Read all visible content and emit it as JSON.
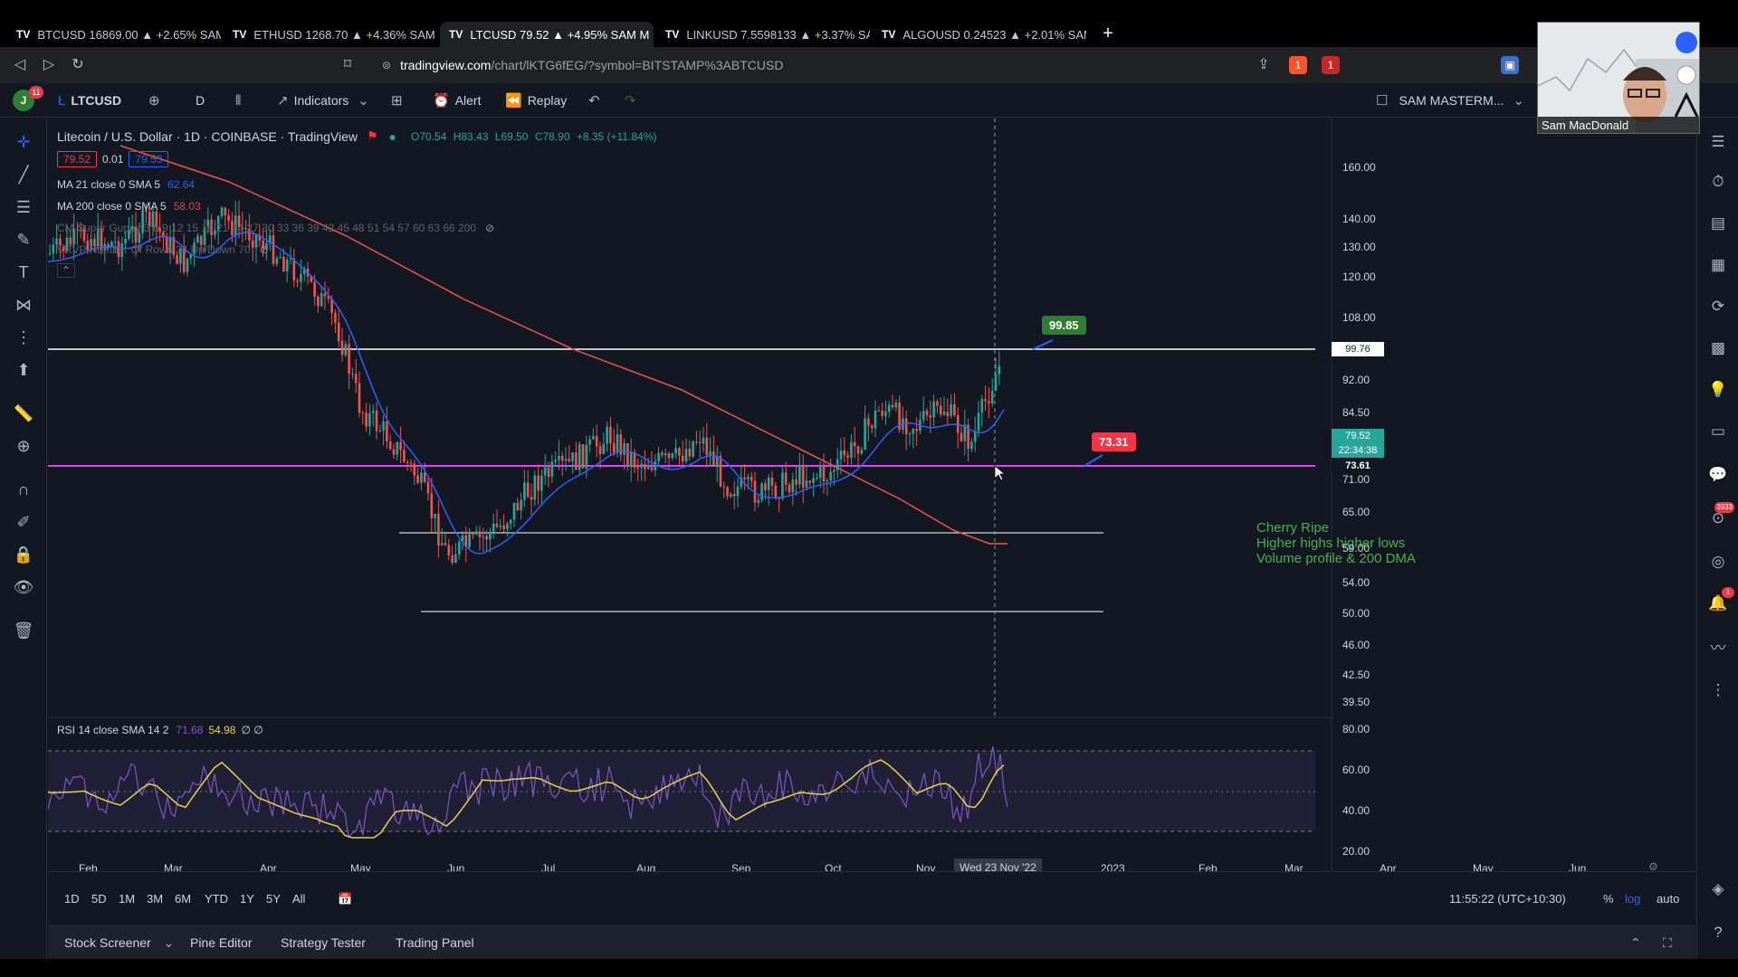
{
  "browser": {
    "tabs": [
      {
        "label": "BTCUSD 16869.00 ▲ +2.65% SAM MA",
        "active": false
      },
      {
        "label": "ETHUSD 1268.70 ▲ +4.36% SAM MAS",
        "active": false
      },
      {
        "label": "LTCUSD 79.52 ▲ +4.95% SAM M",
        "active": true
      },
      {
        "label": "LINKUSD 7.5598133 ▲ +3.37% SAM M",
        "active": false
      },
      {
        "label": "ALGOUSD 0.24523 ▲ +2.01% SAM M",
        "active": false
      }
    ],
    "tab_logo": "TV",
    "tab_close": "✕",
    "new_tab": "+",
    "url_domain": "tradingview.com",
    "url_path": "/chart/lKTG6fEG/?symbol=BITSTAMP%3ABTCUSD",
    "extensions": {
      "brave_badge": "1",
      "alert_badge": "1"
    }
  },
  "toolbar": {
    "avatar_letter": "J",
    "avatar_badge": "11",
    "symbol": "LTCUSD",
    "interval": "D",
    "indicators_label": "Indicators",
    "alert_label": "Alert",
    "replay_label": "Replay",
    "layout_name": "SAM MASTERM..."
  },
  "chart": {
    "title": "Litecoin / U.S. Dollar · 1D · COINBASE · TradingView",
    "ohlc": {
      "o": "O70.54",
      "h": "H83.43",
      "l": "L69.50",
      "c": "C78.90",
      "chg": "+8.35 (+11.84%)"
    },
    "bid": "79.52",
    "spread": "0.01",
    "ask": "79.53",
    "ma21": {
      "label": "MA 21 close 0 SMA 5",
      "value": "62.64",
      "color": "#2962ff"
    },
    "ma200": {
      "label": "MA 200 close 0 SMA 5",
      "value": "58.03",
      "color": "#f23645"
    },
    "cm_label": "CM Super Guppy 3 6 9 12 15 18 21 24 27 30 33 36 39 42 45 48 51 54 57 60 63 66 200",
    "vrvp_label": "VRVP Number Of Rows 24 Up/Down 70",
    "rsi_label": "RSI 14 close SMA 14 2",
    "rsi_value": "71.68",
    "rsi_ma_value": "54.98",
    "rsi_extra": "∅ ∅",
    "annotations": {
      "upper": "99.85",
      "lower": "73.31"
    },
    "note": [
      "Cherry Ripe",
      "Higher highs higher lows",
      "Volume profile & 200 DMA"
    ],
    "price_axis": [
      "160.00",
      "140.00",
      "130.00",
      "120.00",
      "108.00",
      "92.00",
      "84.50",
      "71.00",
      "65.00",
      "59.00",
      "54.00",
      "50.00",
      "46.00",
      "42.50",
      "39.50"
    ],
    "price_tags": {
      "line": "99.76",
      "last": "79.52",
      "countdown": "22:34:38",
      "hline": "73.61"
    },
    "rsi_axis": [
      "80.00",
      "60.00",
      "40.00",
      "20.00"
    ],
    "time_axis": [
      "Feb",
      "Mar",
      "Apr",
      "May",
      "Jun",
      "Jul",
      "Aug",
      "Sep",
      "Oct",
      "Nov",
      "2023",
      "Feb",
      "Mar",
      "Apr",
      "May",
      "Jun"
    ],
    "crosshair_date": "Wed 23 Nov '22",
    "colors": {
      "up": "#26a69a",
      "down": "#ef5350",
      "rsi": "#7e57c2",
      "rsi_ma": "#e8d24a",
      "hline": "#e040fb",
      "up_label": "#2e7d32",
      "down_label": "#f23645"
    }
  },
  "range_bar": {
    "ranges": [
      "1D",
      "5D",
      "1M",
      "3M",
      "6M",
      "YTD",
      "1Y",
      "5Y",
      "All"
    ],
    "clock": "11:55:22 (UTC+10:30)",
    "percent": "%",
    "log": "log",
    "auto": "auto"
  },
  "panel_bar": {
    "stock_screener": "Stock Screener",
    "pine_editor": "Pine Editor",
    "strategy_tester": "Strategy Tester",
    "trading_panel": "Trading Panel"
  },
  "webcam": {
    "name": "Sam MacDonald"
  }
}
